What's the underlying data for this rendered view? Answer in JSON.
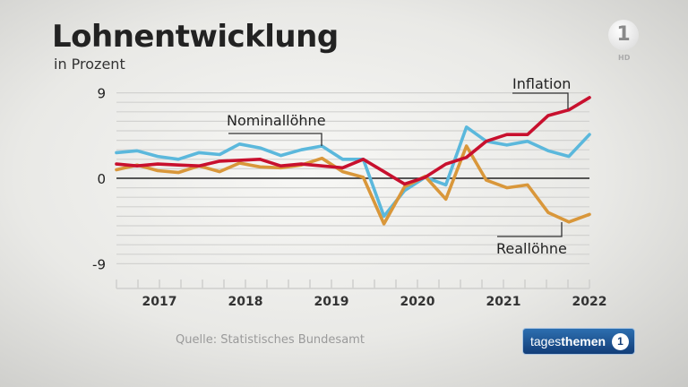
{
  "title": "Lohnentwicklung",
  "subtitle": "in Prozent",
  "source": "Quelle: Statistisches Bundesamt",
  "broadcaster_logo": "1",
  "hd_label": "HD",
  "show_badge": {
    "part1": "tages",
    "part2": "themen",
    "icon": "1"
  },
  "chart_data": {
    "type": "line",
    "title": "Lohnentwicklung",
    "ylabel": "in Prozent",
    "ylim": [
      -10,
      9.5
    ],
    "xlim": [
      2016.5,
      2022.0
    ],
    "yticks": [
      9,
      0,
      -9
    ],
    "ytick_labels": [
      "9",
      "0",
      "-9"
    ],
    "xticks": [
      2017,
      2018,
      2019,
      2020,
      2021,
      2022
    ],
    "xtick_labels": [
      "2017",
      "2018",
      "2019",
      "2020",
      "2021",
      "2022"
    ],
    "grid": true,
    "x": [
      2016.5,
      2016.74,
      2016.98,
      2017.22,
      2017.46,
      2017.7,
      2017.93,
      2018.17,
      2018.41,
      2018.65,
      2018.89,
      2019.13,
      2019.37,
      2019.61,
      2019.85,
      2020.09,
      2020.33,
      2020.57,
      2020.8,
      2021.04,
      2021.28,
      2021.52,
      2021.76,
      2022.0
    ],
    "series": [
      {
        "name": "Nominallöhne",
        "color": "#5bb8dc",
        "values": [
          2.7,
          2.9,
          2.3,
          2.0,
          2.7,
          2.5,
          3.6,
          3.2,
          2.4,
          3.0,
          3.4,
          2.0,
          2.0,
          -4.0,
          -1.3,
          0.1,
          -0.7,
          5.4,
          3.9,
          3.5,
          3.9,
          2.9,
          2.3,
          4.6
        ]
      },
      {
        "name": "Inflation",
        "color": "#c8102e",
        "values": [
          1.5,
          1.3,
          1.5,
          1.4,
          1.3,
          1.8,
          1.9,
          2.0,
          1.3,
          1.5,
          1.3,
          1.1,
          2.0,
          0.7,
          -0.6,
          0.1,
          1.5,
          2.2,
          3.9,
          4.6,
          4.6,
          6.6,
          7.2,
          8.5
        ]
      },
      {
        "name": "Reallöhne",
        "color": "#d9973a",
        "values": [
          0.9,
          1.4,
          0.8,
          0.6,
          1.3,
          0.7,
          1.6,
          1.2,
          1.1,
          1.4,
          2.1,
          0.7,
          0.1,
          -4.8,
          -0.9,
          0.2,
          -2.2,
          3.4,
          -0.2,
          -1.0,
          -0.7,
          -3.6,
          -4.6,
          -3.8
        ]
      }
    ]
  }
}
